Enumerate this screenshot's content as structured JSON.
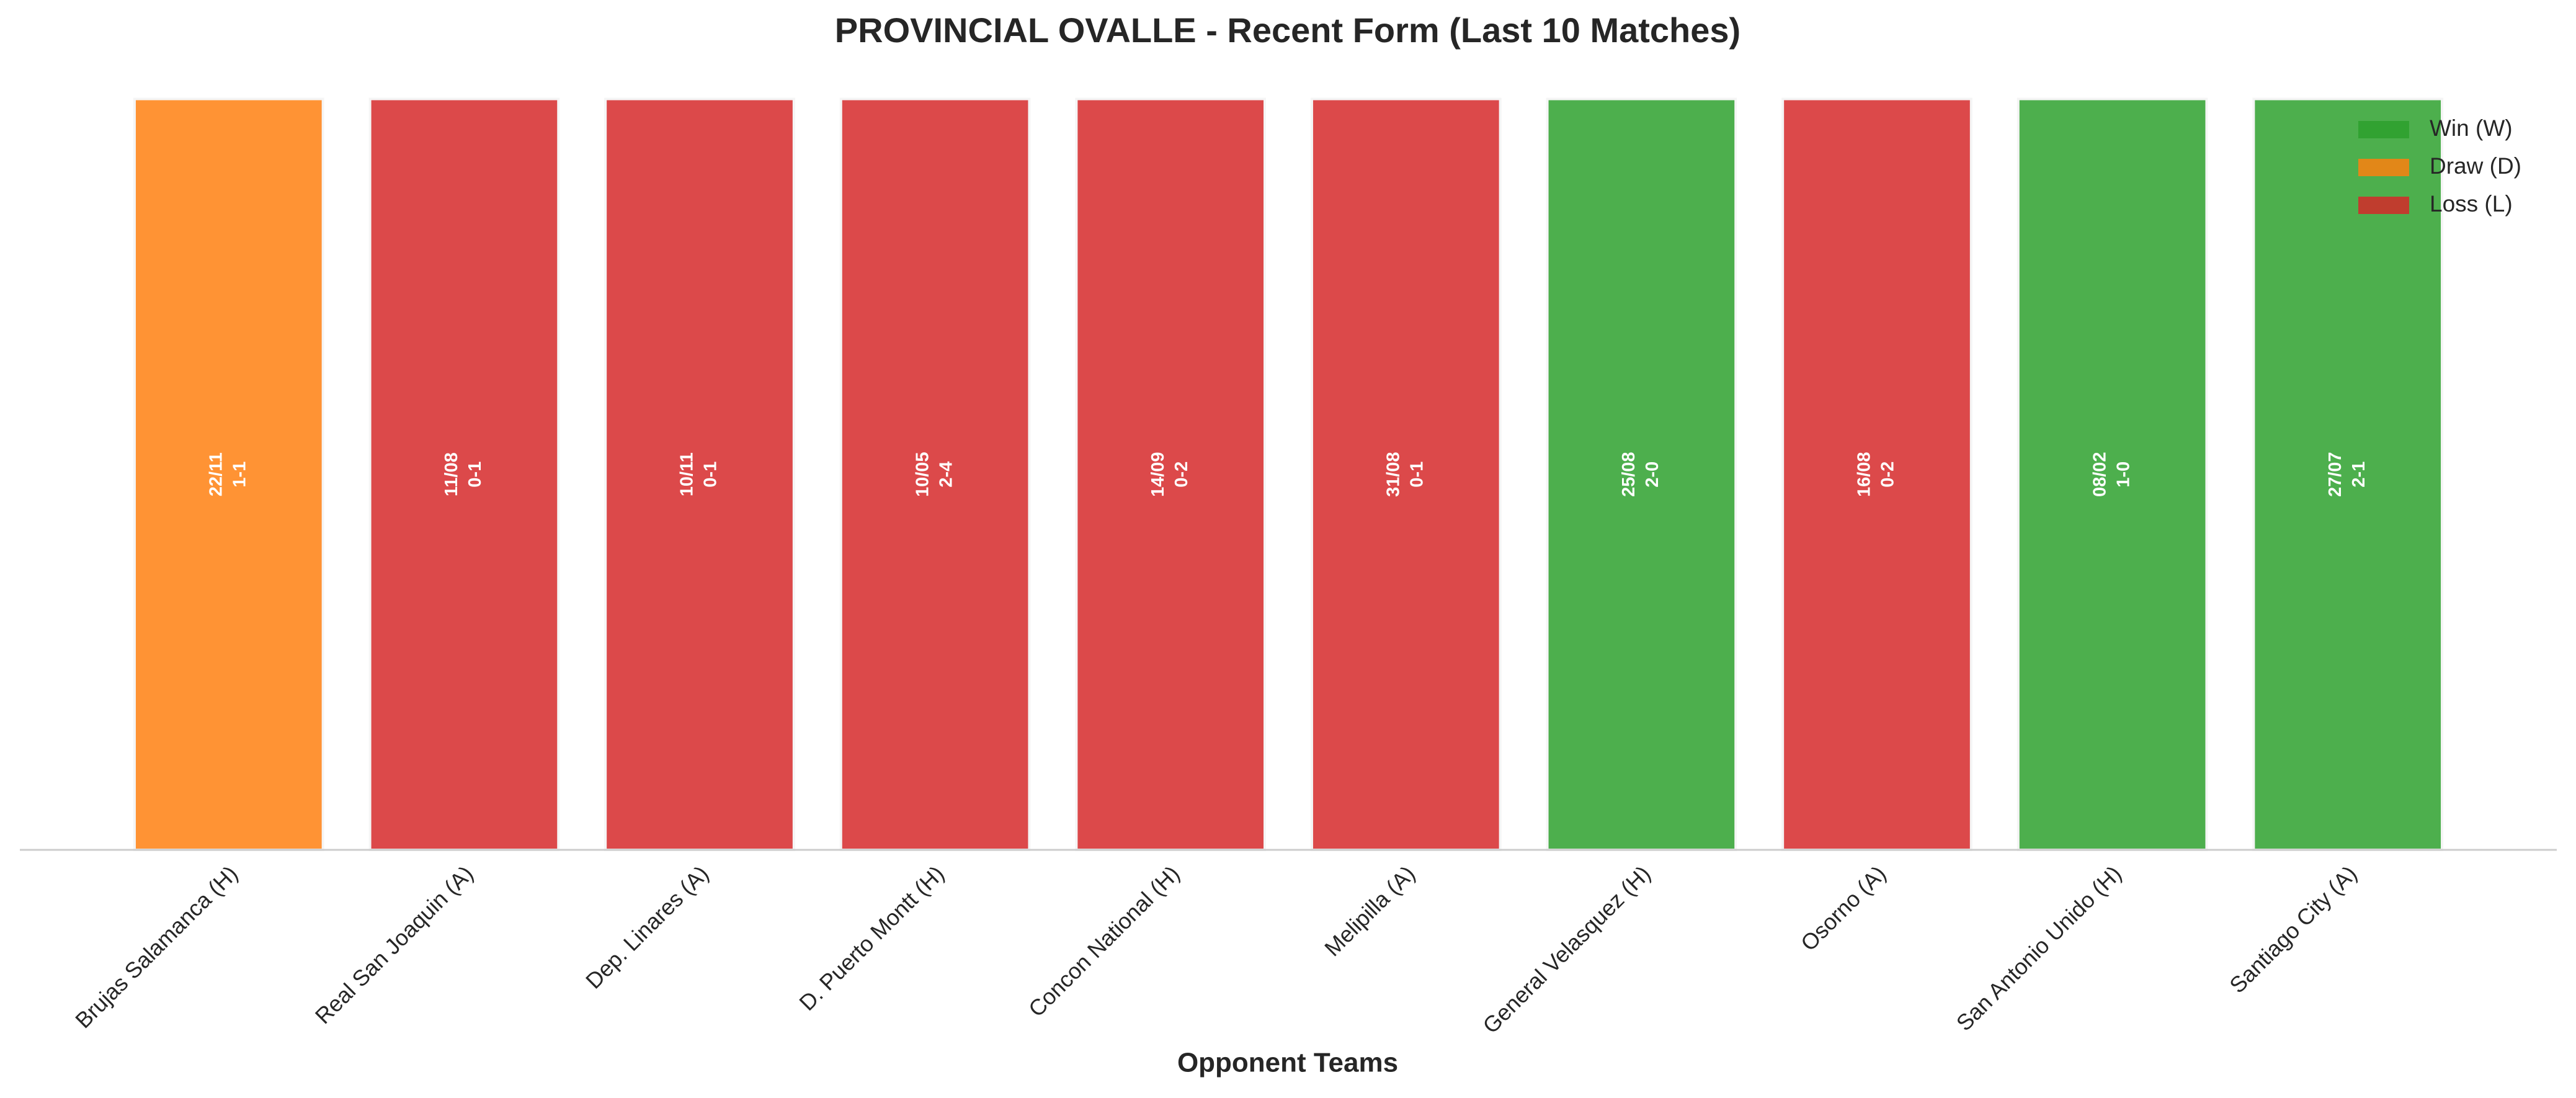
{
  "chart_data": {
    "type": "bar",
    "title": "PROVINCIAL OVALLE - Recent Form (Last 10 Matches)",
    "x_label": "Opponent Teams",
    "categories": [
      "Brujas Salamanca (H)",
      "Real San Joaquin (A)",
      "Dep. Linares (A)",
      "D. Puerto Montt (H)",
      "Concon National (H)",
      "Melipilla (A)",
      "General Velasquez (H)",
      "Osorno (A)",
      "San Antonio Unido (H)",
      "Santiago City (A)"
    ],
    "values": [
      1,
      1,
      1,
      1,
      1,
      1,
      1,
      1,
      1,
      1
    ],
    "dates": [
      "22/11",
      "11/08",
      "10/11",
      "10/05",
      "14/09",
      "31/08",
      "25/08",
      "16/08",
      "08/02",
      "27/07"
    ],
    "scores": [
      "1-1",
      "0-1",
      "0-1",
      "2-4",
      "0-2",
      "0-1",
      "2-0",
      "0-2",
      "1-0",
      "2-1"
    ],
    "colors": [
      "#ff7f0e",
      "#d62728",
      "#d62728",
      "#d62728",
      "#d62728",
      "#d62728",
      "#2ca02c",
      "#d62728",
      "#2ca02c",
      "#2ca02c"
    ],
    "legend": [
      {
        "name": "Win (W)",
        "color": "#2ca02c"
      },
      {
        "name": "Draw (D)",
        "color": "#ff7f0e"
      },
      {
        "name": "Loss (L)",
        "color": "#d62728"
      }
    ],
    "legend_position": "upper right",
    "ylim": [
      0,
      1.05
    ]
  }
}
